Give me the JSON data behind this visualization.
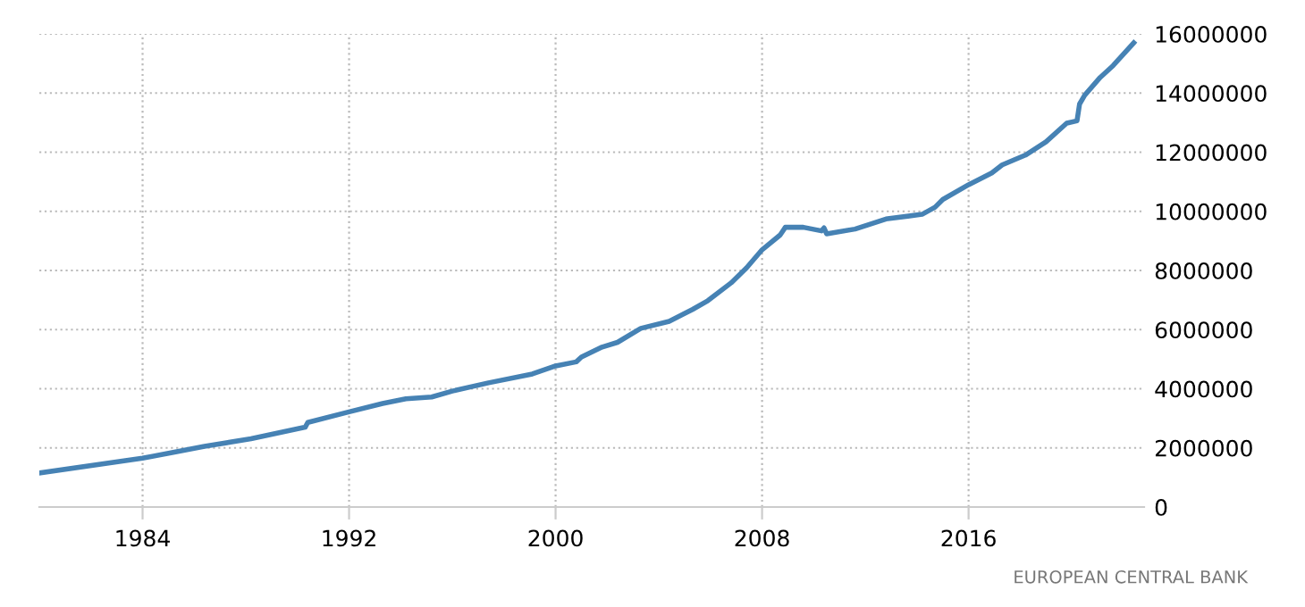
{
  "chart_data": {
    "type": "line",
    "x": [
      1980.0,
      1984.0,
      1986.4,
      1988.2,
      1990.3,
      1990.4,
      1992.0,
      1993.3,
      1994.2,
      1995.2,
      1996.0,
      1997.4,
      1999.1,
      2000.0,
      2000.8,
      2001.0,
      2001.8,
      2002.4,
      2003.3,
      2004.4,
      2005.3,
      2005.9,
      2006.8,
      2007.4,
      2008.0,
      2008.7,
      2008.9,
      2009.6,
      2010.3,
      2010.4,
      2010.5,
      2011.6,
      2012.8,
      2014.2,
      2014.7,
      2015.0,
      2016.0,
      2016.9,
      2017.3,
      2018.2,
      2019.0,
      2019.8,
      2020.2,
      2020.3,
      2020.5,
      2021.1,
      2021.6,
      2022.4
    ],
    "series": [
      {
        "color": "#4682b4",
        "values": [
          1150000,
          1650000,
          2050000,
          2310000,
          2700000,
          2860000,
          3220000,
          3500000,
          3660000,
          3720000,
          3920000,
          4200000,
          4500000,
          4770000,
          4910000,
          5070000,
          5410000,
          5570000,
          6040000,
          6280000,
          6680000,
          6980000,
          7580000,
          8090000,
          8700000,
          9200000,
          9460000,
          9460000,
          9340000,
          9440000,
          9240000,
          9400000,
          9740000,
          9900000,
          10140000,
          10400000,
          10900000,
          11300000,
          11570000,
          11900000,
          12350000,
          12980000,
          13060000,
          13630000,
          13930000,
          14530000,
          14930000,
          15700000
        ]
      }
    ],
    "xlim": [
      1980,
      2022.8
    ],
    "xticks": [
      1984,
      1992,
      2000,
      2008,
      2016
    ],
    "ylim": [
      0,
      16000000
    ],
    "yticks": [
      0,
      2000000,
      4000000,
      6000000,
      8000000,
      10000000,
      12000000,
      14000000,
      16000000
    ],
    "grid": true,
    "line_style": "solid",
    "marker": "none",
    "annotations": [
      "EUROPEAN CENTRAL BANK"
    ]
  }
}
